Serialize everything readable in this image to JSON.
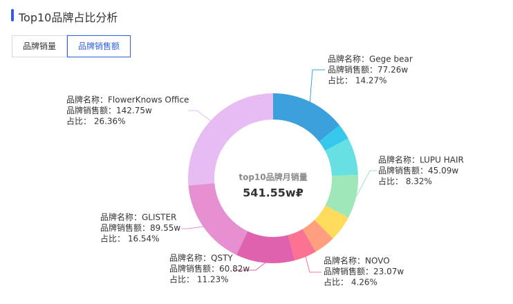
{
  "chart_data": {
    "type": "donut",
    "title": "Top10品牌占比分析",
    "tabs": [
      "品牌销量",
      "品牌销售额"
    ],
    "active_tab": 1,
    "center_title": "top10品牌月销量",
    "center_value": "541.55w₽",
    "categories": [
      "Gege bear",
      null,
      null,
      "LUPU HAIR",
      null,
      null,
      "NOVO",
      "QSTY",
      "GLISTER",
      "FlowerKnows Office"
    ],
    "values": [
      77.26,
      16.0,
      38.5,
      45.09,
      26.5,
      22.01,
      23.07,
      60.82,
      89.55,
      142.75
    ],
    "colors": [
      "#3ba0dc",
      "#36c8ec",
      "#67e0e3",
      "#9fe6b8",
      "#ffdb5c",
      "#ff9f7f",
      "#fb7293",
      "#e062ae",
      "#e690d1",
      "#e7bcf3"
    ],
    "name_labels": [
      "品牌名称：Gege bear",
      null,
      null,
      "品牌名称：LUPU HAIR",
      null,
      null,
      "品牌名称：NOVO",
      "品牌名称：QSTY",
      "品牌名称：GLISTER",
      "品牌名称：FlowerKnows Office"
    ],
    "value_labels": [
      "品牌销售额：77.26w",
      null,
      null,
      "品牌销售额：45.09w",
      null,
      null,
      "品牌销售额：23.07w",
      "品牌销售额：60.82w",
      "品牌销售额：89.55w",
      "品牌销售额：142.75w"
    ],
    "percent_labels": [
      "占比： 14.27%",
      null,
      null,
      "占比： 8.32%",
      null,
      null,
      "占比： 4.26%",
      "占比： 11.23%",
      "占比： 16.54%",
      "占比： 26.36%"
    ]
  }
}
